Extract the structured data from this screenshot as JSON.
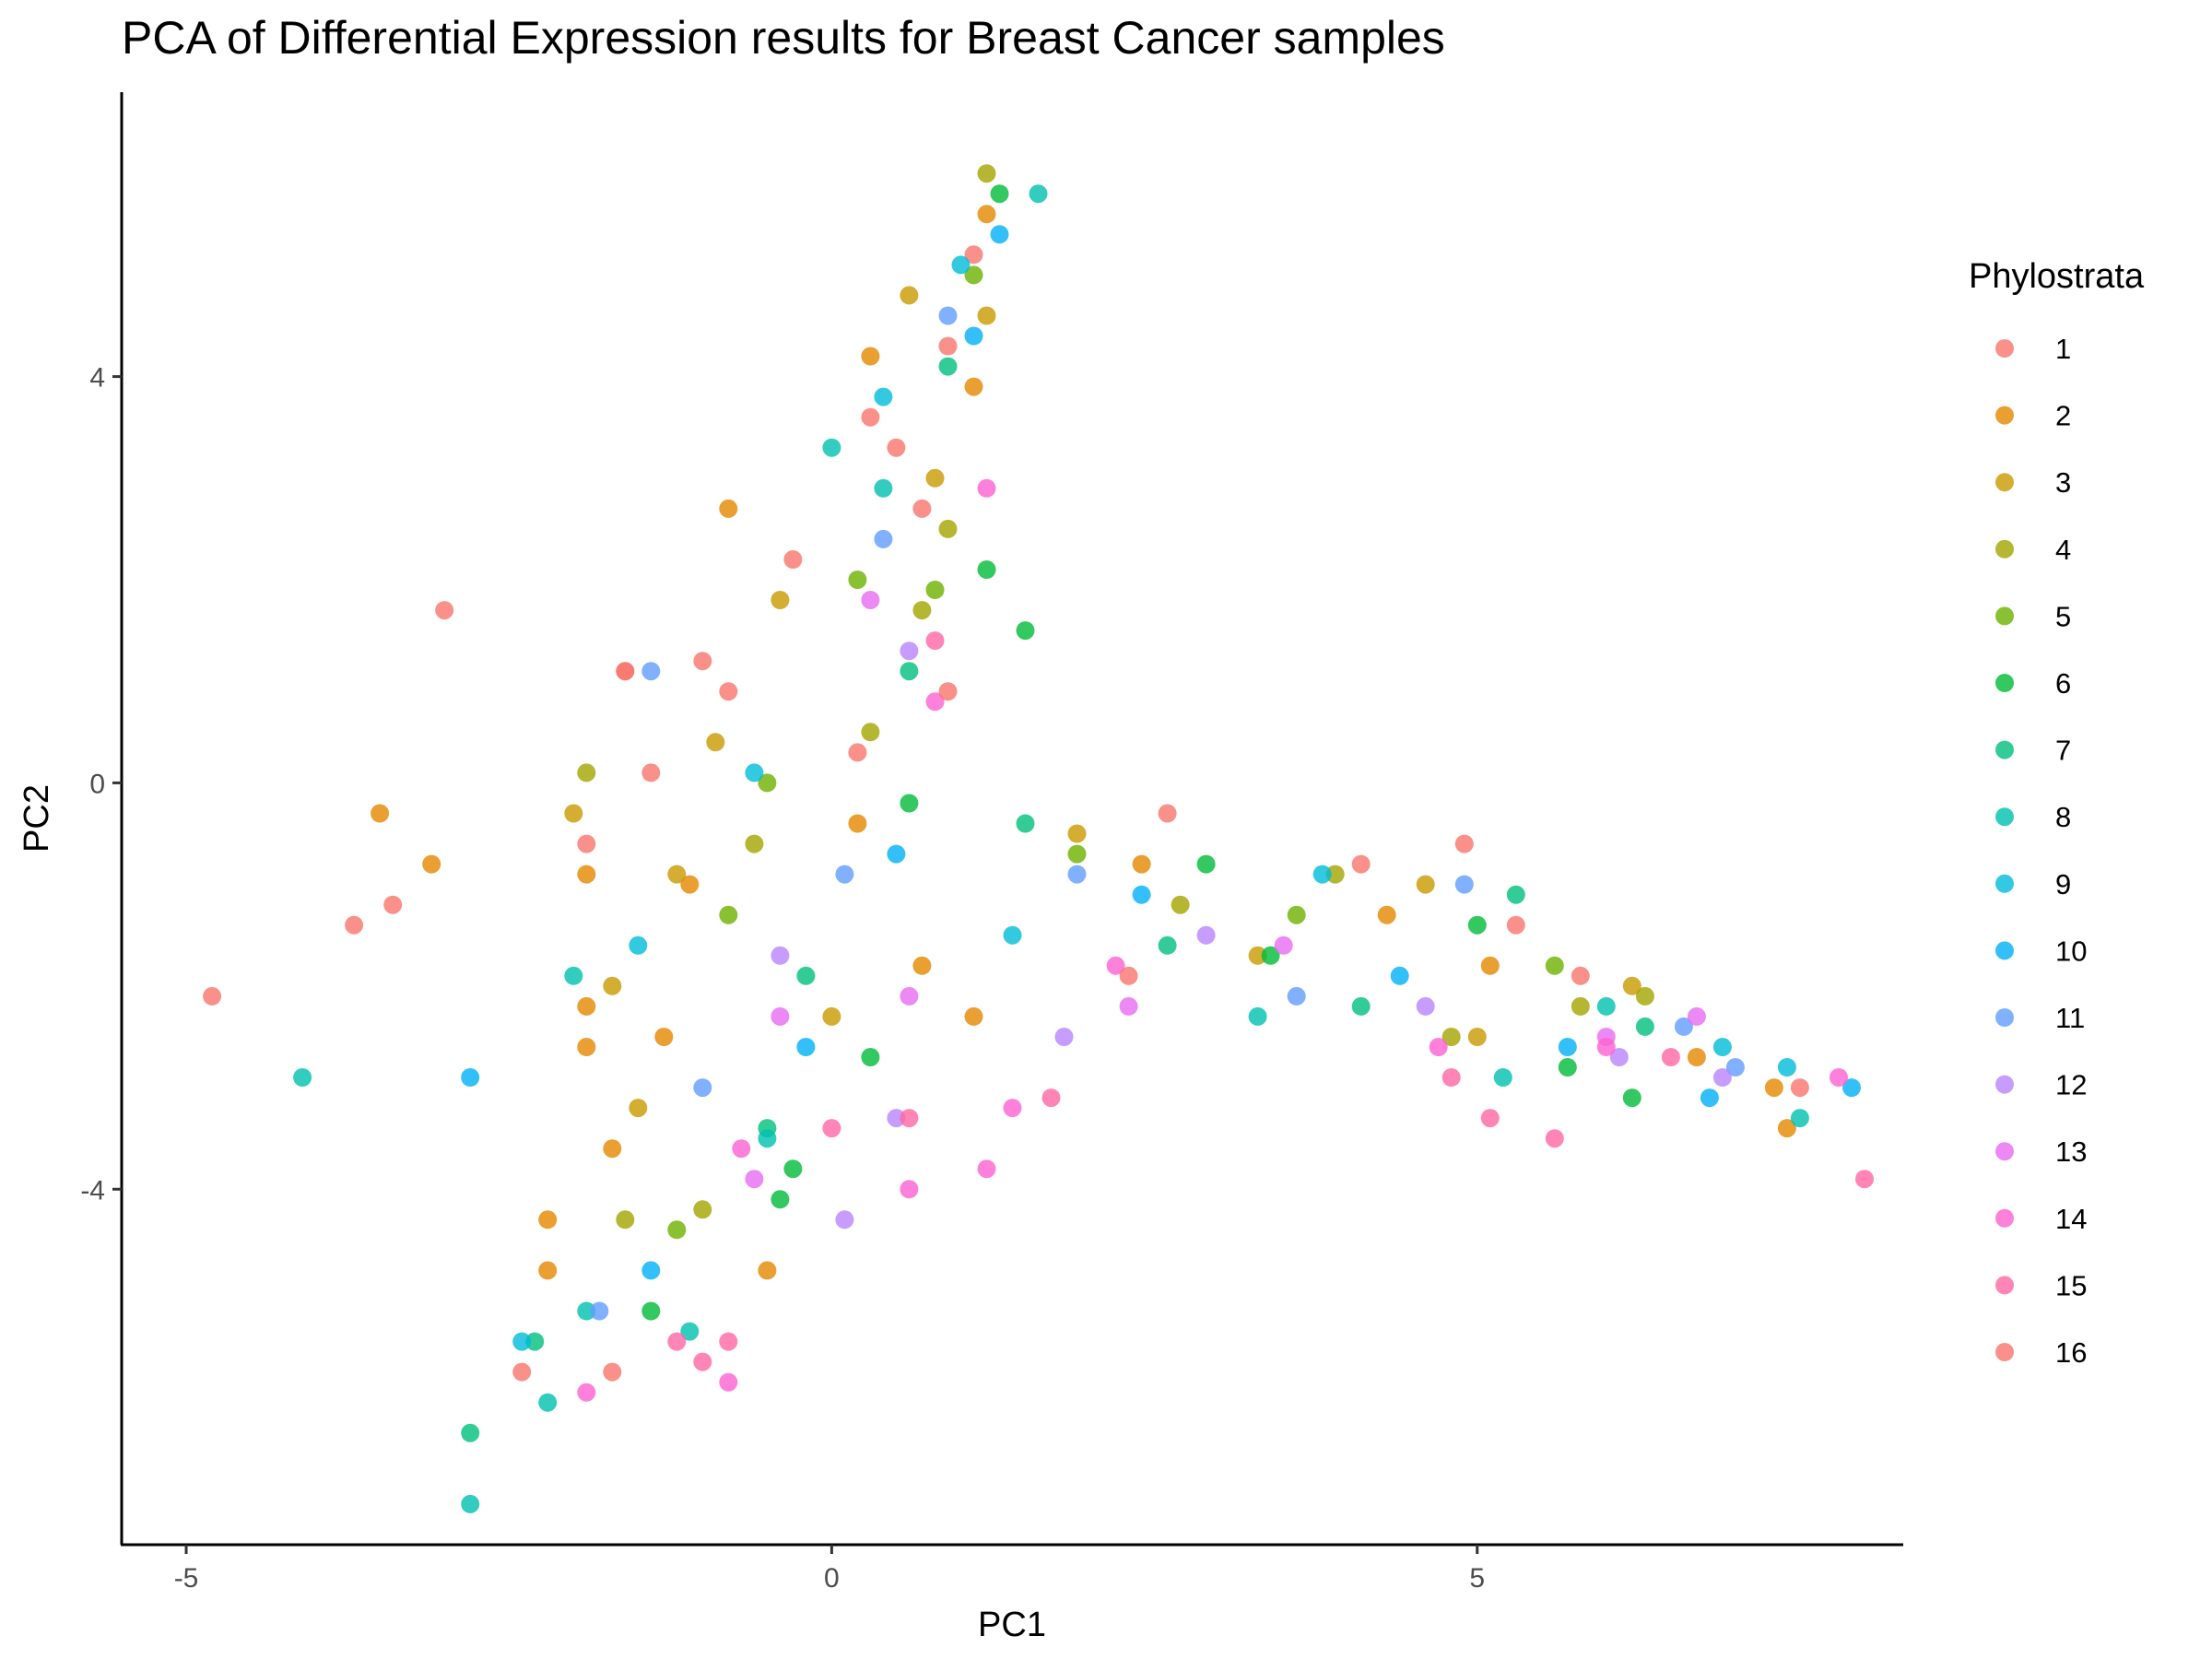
{
  "chart_data": {
    "type": "scatter",
    "title": "PCA of Differential Expression results for Breast Cancer samples",
    "xlabel": "PC1",
    "ylabel": "PC2",
    "xlim": [
      -5.5,
      8.3
    ],
    "ylim": [
      -7.5,
      6.8
    ],
    "xticks": [
      -5,
      0,
      5
    ],
    "yticks": [
      -4,
      0,
      4
    ],
    "xtick_labels": [
      "-5",
      "0",
      "5"
    ],
    "ytick_labels": [
      "-4",
      "0",
      "4"
    ],
    "grid": false,
    "legend": {
      "title": "Phylostrata",
      "placement": "right",
      "entries": [
        {
          "label": "1",
          "color": "#F8766D"
        },
        {
          "label": "2",
          "color": "#E58700"
        },
        {
          "label": "3",
          "color": "#C99800"
        },
        {
          "label": "4",
          "color": "#A3A500"
        },
        {
          "label": "5",
          "color": "#6BB100"
        },
        {
          "label": "6",
          "color": "#00BA38"
        },
        {
          "label": "7",
          "color": "#00BF7D"
        },
        {
          "label": "8",
          "color": "#00C0AF"
        },
        {
          "label": "9",
          "color": "#00BCD8"
        },
        {
          "label": "10",
          "color": "#00B0F6"
        },
        {
          "label": "11",
          "color": "#619CFF"
        },
        {
          "label": "12",
          "color": "#B983FF"
        },
        {
          "label": "13",
          "color": "#E76BF3"
        },
        {
          "label": "14",
          "color": "#FD61D1"
        },
        {
          "label": "15",
          "color": "#FF67A4"
        },
        {
          "label": "16",
          "color": "#F8766D"
        }
      ]
    },
    "series": [
      {
        "name": "1",
        "points": [
          [
            -4.8,
            -2.1
          ],
          [
            -3.0,
            1.7
          ],
          [
            -3.7,
            -1.4
          ],
          [
            -3.4,
            -1.2
          ],
          [
            -2.4,
            -5.8
          ],
          [
            -1.9,
            -0.6
          ],
          [
            -1.6,
            1.1
          ],
          [
            -1.4,
            0.1
          ],
          [
            -0.8,
            0.9
          ],
          [
            0.3,
            3.6
          ],
          [
            0.5,
            3.3
          ],
          [
            -0.3,
            2.2
          ],
          [
            1.1,
            5.2
          ],
          [
            0.9,
            4.3
          ],
          [
            0.7,
            2.7
          ],
          [
            2.6,
            -0.3
          ],
          [
            4.1,
            -0.8
          ],
          [
            5.3,
            -1.4
          ]
        ]
      },
      {
        "name": "2",
        "points": [
          [
            -3.5,
            -0.3
          ],
          [
            -3.1,
            -0.8
          ],
          [
            -1.9,
            -0.9
          ],
          [
            -1.9,
            -2.2
          ],
          [
            -1.9,
            -2.6
          ],
          [
            -2.2,
            -4.3
          ],
          [
            -2.2,
            -4.8
          ],
          [
            -1.7,
            -3.6
          ],
          [
            -1.3,
            -2.5
          ],
          [
            -1.1,
            -1.0
          ],
          [
            -0.8,
            2.7
          ],
          [
            -0.5,
            -4.8
          ],
          [
            0.3,
            4.2
          ],
          [
            1.2,
            5.6
          ],
          [
            1.1,
            3.9
          ],
          [
            0.7,
            -1.8
          ],
          [
            0.2,
            -0.4
          ],
          [
            1.1,
            -2.3
          ],
          [
            2.4,
            -0.8
          ],
          [
            4.3,
            -1.3
          ],
          [
            5.1,
            -1.8
          ],
          [
            6.7,
            -2.7
          ],
          [
            7.3,
            -3.0
          ],
          [
            7.4,
            -3.4
          ]
        ]
      },
      {
        "name": "3",
        "points": [
          [
            -2.0,
            -0.3
          ],
          [
            -1.7,
            -2.0
          ],
          [
            -1.5,
            -3.2
          ],
          [
            -1.2,
            -0.9
          ],
          [
            -0.9,
            0.4
          ],
          [
            -0.4,
            1.8
          ],
          [
            0.0,
            -2.3
          ],
          [
            0.6,
            4.8
          ],
          [
            0.8,
            3.0
          ],
          [
            1.2,
            4.6
          ],
          [
            1.9,
            -0.5
          ],
          [
            3.3,
            -1.7
          ],
          [
            4.6,
            -1.0
          ],
          [
            5.0,
            -2.5
          ],
          [
            6.2,
            -2.0
          ]
        ]
      },
      {
        "name": "4",
        "points": [
          [
            -1.9,
            0.1
          ],
          [
            -1.6,
            -4.3
          ],
          [
            -1.0,
            -4.2
          ],
          [
            -0.6,
            -0.6
          ],
          [
            0.3,
            0.5
          ],
          [
            1.2,
            6.0
          ],
          [
            0.9,
            2.5
          ],
          [
            0.7,
            1.7
          ],
          [
            2.7,
            -1.2
          ],
          [
            3.9,
            -0.9
          ],
          [
            4.8,
            -2.5
          ],
          [
            5.8,
            -2.2
          ],
          [
            6.3,
            -2.1
          ]
        ]
      },
      {
        "name": "5",
        "points": [
          [
            -1.2,
            -4.4
          ],
          [
            -0.8,
            -1.3
          ],
          [
            -0.5,
            0.0
          ],
          [
            0.2,
            2.0
          ],
          [
            0.8,
            1.9
          ],
          [
            1.1,
            5.0
          ],
          [
            1.9,
            -0.7
          ],
          [
            3.6,
            -1.3
          ],
          [
            5.6,
            -1.8
          ]
        ]
      },
      {
        "name": "6",
        "points": [
          [
            -1.4,
            -5.2
          ],
          [
            -0.4,
            -4.1
          ],
          [
            -0.3,
            -3.8
          ],
          [
            0.3,
            -2.7
          ],
          [
            1.5,
            1.5
          ],
          [
            1.2,
            2.1
          ],
          [
            1.3,
            5.8
          ],
          [
            0.6,
            -0.2
          ],
          [
            2.9,
            -0.8
          ],
          [
            3.4,
            -1.7
          ],
          [
            5.0,
            -1.4
          ],
          [
            6.2,
            -3.1
          ],
          [
            5.7,
            -2.8
          ]
        ]
      },
      {
        "name": "7",
        "points": [
          [
            -2.8,
            -6.4
          ],
          [
            -2.3,
            -5.5
          ],
          [
            -0.5,
            -3.4
          ],
          [
            -0.2,
            -1.9
          ],
          [
            0.6,
            1.1
          ],
          [
            0.9,
            4.1
          ],
          [
            1.5,
            -0.4
          ],
          [
            2.6,
            -1.6
          ],
          [
            4.1,
            -2.2
          ],
          [
            5.3,
            -1.1
          ],
          [
            6.3,
            -2.4
          ]
        ]
      },
      {
        "name": "8",
        "points": [
          [
            -4.1,
            -2.9
          ],
          [
            -2.8,
            -7.1
          ],
          [
            -2.2,
            -6.1
          ],
          [
            -1.9,
            -5.2
          ],
          [
            -2.0,
            -1.9
          ],
          [
            -1.1,
            -5.4
          ],
          [
            -0.5,
            -3.5
          ],
          [
            0.0,
            3.3
          ],
          [
            0.4,
            2.9
          ],
          [
            1.6,
            5.8
          ],
          [
            3.3,
            -2.3
          ],
          [
            5.2,
            -2.9
          ],
          [
            7.5,
            -3.3
          ],
          [
            6.0,
            -2.2
          ]
        ]
      },
      {
        "name": "9",
        "points": [
          [
            -2.4,
            -5.5
          ],
          [
            -1.5,
            -1.6
          ],
          [
            -0.6,
            0.1
          ],
          [
            0.4,
            3.8
          ],
          [
            1.0,
            5.1
          ],
          [
            1.4,
            -1.5
          ],
          [
            3.8,
            -0.9
          ],
          [
            6.9,
            -2.6
          ],
          [
            7.4,
            -2.8
          ]
        ]
      },
      {
        "name": "10",
        "points": [
          [
            -2.8,
            -2.9
          ],
          [
            -1.4,
            -4.8
          ],
          [
            -0.2,
            -2.6
          ],
          [
            0.5,
            -0.7
          ],
          [
            1.1,
            4.4
          ],
          [
            1.3,
            5.4
          ],
          [
            2.4,
            -1.1
          ],
          [
            4.4,
            -1.9
          ],
          [
            5.7,
            -2.6
          ],
          [
            6.8,
            -3.1
          ],
          [
            7.9,
            -3.0
          ]
        ]
      },
      {
        "name": "11",
        "points": [
          [
            -1.4,
            1.1
          ],
          [
            -1.8,
            -5.2
          ],
          [
            -1.0,
            -3.0
          ],
          [
            0.1,
            -0.9
          ],
          [
            0.4,
            2.4
          ],
          [
            0.9,
            4.6
          ],
          [
            1.9,
            -0.9
          ],
          [
            3.6,
            -2.1
          ],
          [
            4.9,
            -1.0
          ],
          [
            6.6,
            -2.4
          ],
          [
            7.0,
            -2.8
          ]
        ]
      },
      {
        "name": "12",
        "points": [
          [
            0.1,
            -4.3
          ],
          [
            0.5,
            -3.3
          ],
          [
            -0.4,
            -1.7
          ],
          [
            0.6,
            1.3
          ],
          [
            1.8,
            -2.5
          ],
          [
            2.9,
            -1.5
          ],
          [
            4.6,
            -2.2
          ],
          [
            6.1,
            -2.7
          ],
          [
            6.9,
            -2.9
          ]
        ]
      },
      {
        "name": "13",
        "points": [
          [
            -0.6,
            -3.9
          ],
          [
            -0.4,
            -2.3
          ],
          [
            0.3,
            1.8
          ],
          [
            0.6,
            -2.1
          ],
          [
            2.3,
            -2.2
          ],
          [
            3.5,
            -1.6
          ],
          [
            6.0,
            -2.5
          ],
          [
            6.7,
            -2.3
          ]
        ]
      },
      {
        "name": "14",
        "points": [
          [
            -1.9,
            -6.0
          ],
          [
            -0.8,
            -5.9
          ],
          [
            -0.7,
            -3.6
          ],
          [
            0.6,
            -4.0
          ],
          [
            1.2,
            -3.8
          ],
          [
            1.4,
            -3.2
          ],
          [
            1.2,
            2.9
          ],
          [
            0.8,
            0.8
          ],
          [
            2.2,
            -1.8
          ],
          [
            4.7,
            -2.6
          ],
          [
            6.0,
            -2.6
          ],
          [
            7.8,
            -2.9
          ]
        ]
      },
      {
        "name": "15",
        "points": [
          [
            -1.2,
            -5.5
          ],
          [
            -1.0,
            -5.7
          ],
          [
            -0.8,
            -5.5
          ],
          [
            0.0,
            -3.4
          ],
          [
            0.6,
            -3.3
          ],
          [
            0.8,
            1.4
          ],
          [
            1.7,
            -3.1
          ],
          [
            4.8,
            -2.9
          ],
          [
            5.1,
            -3.3
          ],
          [
            5.6,
            -3.5
          ],
          [
            6.5,
            -2.7
          ],
          [
            8.0,
            -3.9
          ]
        ]
      },
      {
        "name": "16",
        "points": [
          [
            -1.7,
            -5.8
          ],
          [
            -1.6,
            1.1
          ],
          [
            -1.0,
            1.2
          ],
          [
            0.2,
            0.3
          ],
          [
            0.9,
            0.9
          ],
          [
            2.3,
            -1.9
          ],
          [
            4.9,
            -0.6
          ],
          [
            5.8,
            -1.9
          ],
          [
            7.5,
            -3.0
          ]
        ]
      }
    ]
  }
}
